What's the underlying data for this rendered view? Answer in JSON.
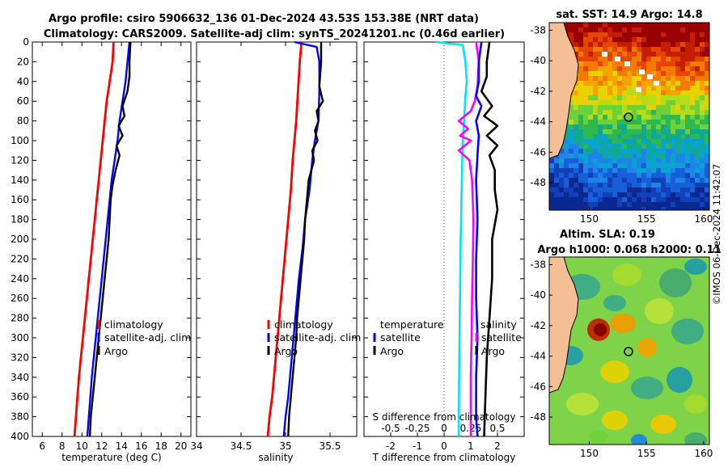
{
  "title": {
    "line1": "Argo profile: csiro 5906632_136 01-Dec-2024 43.53S 153.38E (NRT data)",
    "line2": "Climatology: CARS2009. Satellite-adj clim: synTS_20241201.nc (0.46d earlier)"
  },
  "colors": {
    "climatology": "#ff0000",
    "satellite": "#0000ff",
    "argo": "#000000",
    "s_clim_diff": "#ff00ff",
    "t_clim_diff": "#00e5ee"
  },
  "chart_data": [
    {
      "type": "line",
      "id": "temperature",
      "xlabel": "temperature (deg C)",
      "ylabel": "",
      "xlim": [
        5,
        21
      ],
      "ylim": [
        0,
        400
      ],
      "y_reversed": true,
      "xticks": [
        6,
        8,
        10,
        12,
        14,
        16,
        18,
        20
      ],
      "yticks": [
        0,
        20,
        40,
        60,
        80,
        100,
        120,
        140,
        160,
        180,
        200,
        220,
        240,
        260,
        280,
        300,
        320,
        340,
        360,
        380,
        400
      ],
      "legend": [
        "climatology",
        "satellite-adj. clim",
        "Argo"
      ],
      "legend_position": "lower-right",
      "series": [
        {
          "name": "climatology",
          "color": "#ff0000",
          "points": [
            [
              13.2,
              0
            ],
            [
              13.1,
              20
            ],
            [
              12.8,
              40
            ],
            [
              12.5,
              60
            ],
            [
              12.3,
              80
            ],
            [
              12.1,
              100
            ],
            [
              11.9,
              120
            ],
            [
              11.7,
              140
            ],
            [
              11.5,
              160
            ],
            [
              11.3,
              180
            ],
            [
              11.1,
              200
            ],
            [
              10.9,
              220
            ],
            [
              10.7,
              240
            ],
            [
              10.5,
              260
            ],
            [
              10.3,
              280
            ],
            [
              10.1,
              300
            ],
            [
              9.9,
              320
            ],
            [
              9.7,
              340
            ],
            [
              9.55,
              360
            ],
            [
              9.4,
              380
            ],
            [
              9.25,
              400
            ]
          ]
        },
        {
          "name": "satellite-adj. clim",
          "color": "#0000ff",
          "points": [
            [
              14.8,
              0
            ],
            [
              14.6,
              20
            ],
            [
              14.4,
              40
            ],
            [
              14.1,
              60
            ],
            [
              13.8,
              80
            ],
            [
              13.6,
              100
            ],
            [
              13.3,
              120
            ],
            [
              13.0,
              140
            ],
            [
              12.8,
              160
            ],
            [
              12.6,
              180
            ],
            [
              12.4,
              200
            ],
            [
              12.2,
              220
            ],
            [
              12.0,
              240
            ],
            [
              11.8,
              260
            ],
            [
              11.6,
              280
            ],
            [
              11.4,
              300
            ],
            [
              11.2,
              320
            ],
            [
              11.0,
              340
            ],
            [
              10.85,
              360
            ],
            [
              10.7,
              380
            ],
            [
              10.55,
              400
            ]
          ]
        },
        {
          "name": "Argo",
          "color": "#000000",
          "points": [
            [
              14.9,
              0
            ],
            [
              14.8,
              20
            ],
            [
              14.8,
              35
            ],
            [
              14.6,
              50
            ],
            [
              14.1,
              65
            ],
            [
              14.3,
              75
            ],
            [
              13.7,
              85
            ],
            [
              14.1,
              95
            ],
            [
              13.5,
              105
            ],
            [
              13.8,
              115
            ],
            [
              13.4,
              130
            ],
            [
              13.1,
              145
            ],
            [
              12.9,
              160
            ],
            [
              12.8,
              180
            ],
            [
              12.7,
              200
            ],
            [
              12.5,
              220
            ],
            [
              12.3,
              240
            ],
            [
              12.1,
              260
            ],
            [
              11.9,
              280
            ],
            [
              11.7,
              300
            ],
            [
              11.5,
              320
            ],
            [
              11.3,
              340
            ],
            [
              11.1,
              360
            ],
            [
              10.9,
              380
            ],
            [
              10.8,
              400
            ]
          ]
        }
      ]
    },
    {
      "type": "line",
      "id": "salinity",
      "xlabel": "salinity",
      "ylabel": "",
      "xlim": [
        34,
        35.8
      ],
      "ylim": [
        0,
        400
      ],
      "y_reversed": true,
      "xticks": [
        34,
        34.5,
        35,
        35.5
      ],
      "xtick_labels": [
        "34",
        "34.5",
        "35",
        "35.5"
      ],
      "legend": [
        "climatology",
        "satellite-adj. clim",
        "Argo"
      ],
      "legend_position": "lower-right",
      "series": [
        {
          "name": "climatology",
          "color": "#ff0000",
          "points": [
            [
              35.18,
              0
            ],
            [
              35.16,
              20
            ],
            [
              35.14,
              50
            ],
            [
              35.12,
              80
            ],
            [
              35.1,
              100
            ],
            [
              35.08,
              120
            ],
            [
              35.06,
              150
            ],
            [
              35.03,
              180
            ],
            [
              35.0,
              210
            ],
            [
              34.97,
              240
            ],
            [
              34.94,
              270
            ],
            [
              34.91,
              300
            ],
            [
              34.88,
              330
            ],
            [
              34.85,
              360
            ],
            [
              34.82,
              380
            ],
            [
              34.8,
              400
            ]
          ]
        },
        {
          "name": "satellite-adj. clim",
          "color": "#0000ff",
          "points": [
            [
              35.1,
              0
            ],
            [
              35.35,
              5
            ],
            [
              35.38,
              20
            ],
            [
              35.38,
              50
            ],
            [
              35.37,
              80
            ],
            [
              35.33,
              100
            ],
            [
              35.3,
              120
            ],
            [
              35.27,
              150
            ],
            [
              35.22,
              180
            ],
            [
              35.19,
              210
            ],
            [
              35.15,
              240
            ],
            [
              35.12,
              270
            ],
            [
              35.09,
              300
            ],
            [
              35.06,
              330
            ],
            [
              35.03,
              360
            ],
            [
              35.0,
              380
            ],
            [
              34.98,
              400
            ]
          ]
        },
        {
          "name": "Argo",
          "color": "#000000",
          "points": [
            [
              35.4,
              0
            ],
            [
              35.4,
              20
            ],
            [
              35.38,
              45
            ],
            [
              35.42,
              60
            ],
            [
              35.35,
              70
            ],
            [
              35.37,
              80
            ],
            [
              35.33,
              90
            ],
            [
              35.36,
              100
            ],
            [
              35.3,
              110
            ],
            [
              35.32,
              120
            ],
            [
              35.26,
              140
            ],
            [
              35.24,
              160
            ],
            [
              35.22,
              180
            ],
            [
              35.21,
              200
            ],
            [
              35.19,
              220
            ],
            [
              35.17,
              240
            ],
            [
              35.15,
              260
            ],
            [
              35.13,
              280
            ],
            [
              35.12,
              300
            ],
            [
              35.1,
              320
            ],
            [
              35.08,
              340
            ],
            [
              35.06,
              360
            ],
            [
              35.04,
              380
            ],
            [
              35.03,
              400
            ]
          ]
        }
      ]
    },
    {
      "type": "line",
      "id": "difference",
      "xlabel": "T difference from climatology",
      "xlabel_top": "S difference from climatology",
      "xlim": [
        -3,
        3
      ],
      "ylim": [
        0,
        400
      ],
      "y_reversed": true,
      "xticks": [
        -2,
        -1,
        0,
        1,
        2
      ],
      "secondary_xticks": [
        -0.5,
        -0.25,
        0,
        0.25,
        0.5
      ],
      "secondary_xtick_labels": [
        "-0.5",
        "-0.25",
        "0",
        "0.25",
        "0.5"
      ],
      "legend_left": {
        "title": "temperature",
        "items": [
          "satellite",
          "Argo"
        ]
      },
      "legend_right": {
        "title": "salinity",
        "items": [
          "satellite",
          "Argo"
        ]
      },
      "series": [
        {
          "name": "T satellite",
          "color": "#00e5ee",
          "points": [
            [
              -0.3,
              0
            ],
            [
              0.7,
              3
            ],
            [
              0.8,
              20
            ],
            [
              0.85,
              40
            ],
            [
              0.8,
              55
            ],
            [
              0.75,
              80
            ],
            [
              0.7,
              100
            ],
            [
              0.68,
              120
            ],
            [
              0.65,
              160
            ],
            [
              0.62,
              200
            ],
            [
              0.6,
              250
            ],
            [
              0.58,
              300
            ],
            [
              0.56,
              350
            ],
            [
              0.55,
              400
            ]
          ]
        },
        {
          "name": "S satellite",
          "color": "#ff00ff",
          "points": [
            [
              1.2,
              0
            ],
            [
              1.3,
              20
            ],
            [
              1.25,
              45
            ],
            [
              1.15,
              60
            ],
            [
              1.0,
              70
            ],
            [
              0.55,
              80
            ],
            [
              0.9,
              88
            ],
            [
              0.6,
              95
            ],
            [
              1.0,
              100
            ],
            [
              0.55,
              110
            ],
            [
              0.95,
              120
            ],
            [
              1.05,
              140
            ],
            [
              1.1,
              180
            ],
            [
              1.08,
              220
            ],
            [
              1.05,
              260
            ],
            [
              1.03,
              300
            ],
            [
              1.0,
              340
            ],
            [
              1.0,
              380
            ],
            [
              1.0,
              400
            ]
          ]
        },
        {
          "name": "T Argo",
          "color": "#000000",
          "points": [
            [
              1.7,
              0
            ],
            [
              1.6,
              20
            ],
            [
              1.6,
              35
            ],
            [
              1.4,
              50
            ],
            [
              1.8,
              65
            ],
            [
              1.5,
              75
            ],
            [
              2.0,
              85
            ],
            [
              1.6,
              95
            ],
            [
              2.0,
              105
            ],
            [
              1.7,
              115
            ],
            [
              1.9,
              130
            ],
            [
              1.9,
              150
            ],
            [
              2.0,
              170
            ],
            [
              1.8,
              200
            ],
            [
              1.8,
              240
            ],
            [
              1.7,
              280
            ],
            [
              1.6,
              320
            ],
            [
              1.55,
              360
            ],
            [
              1.5,
              400
            ]
          ]
        },
        {
          "name": "S Argo",
          "color": "#0000ff",
          "points": [
            [
              1.4,
              0
            ],
            [
              1.3,
              20
            ],
            [
              1.3,
              40
            ],
            [
              1.2,
              55
            ],
            [
              1.4,
              65
            ],
            [
              1.2,
              80
            ],
            [
              1.3,
              95
            ],
            [
              1.25,
              115
            ],
            [
              1.2,
              140
            ],
            [
              1.25,
              180
            ],
            [
              1.2,
              220
            ],
            [
              1.2,
              260
            ],
            [
              1.25,
              300
            ],
            [
              1.2,
              340
            ],
            [
              1.2,
              380
            ],
            [
              1.25,
              400
            ]
          ]
        }
      ]
    },
    {
      "type": "heatmap",
      "id": "sst_map",
      "title": "sat. SST: 14.9 Argo: 14.8",
      "xlim": [
        146.5,
        160.5
      ],
      "ylim": [
        -49.8,
        -37.5
      ],
      "xticks": [
        150,
        155,
        160
      ],
      "yticks": [
        -38,
        -40,
        -42,
        -44,
        -46,
        -48
      ],
      "marker": {
        "lon": 153.38,
        "lat": -43.53
      }
    },
    {
      "type": "heatmap",
      "id": "sla_map",
      "title": "Altim. SLA: 0.19",
      "subtitle": "Argo h1000: 0.068 h2000: 0.11",
      "xlim": [
        146.5,
        160.5
      ],
      "ylim": [
        -49.8,
        -37.5
      ],
      "xticks": [
        150,
        155,
        160
      ],
      "yticks": [
        -38,
        -40,
        -42,
        -44,
        -46,
        -48
      ],
      "marker": {
        "lon": 153.38,
        "lat": -43.53
      }
    }
  ],
  "credit": "©IMOS 06-Dec-2024 11:42:07"
}
